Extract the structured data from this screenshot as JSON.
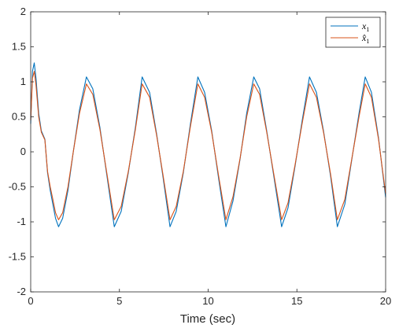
{
  "chart_data": {
    "type": "line",
    "title": "",
    "xlabel": "Time (sec)",
    "ylabel": "",
    "xlim": [
      0,
      20
    ],
    "ylim": [
      -2,
      2
    ],
    "xticks": [
      0,
      5,
      10,
      15,
      20
    ],
    "xtick_labels": [
      "0",
      "5",
      "10",
      "15",
      "20"
    ],
    "yticks": [
      -2,
      -1.5,
      -1,
      -0.5,
      0,
      0.5,
      1,
      1.5,
      2
    ],
    "ytick_labels": [
      "-2",
      "-1.5",
      "-1",
      "-0.5",
      "0",
      "0.5",
      "1",
      "1.5",
      "2"
    ],
    "grid": false,
    "legend_position": "top-right",
    "series": [
      {
        "name": "x1",
        "legend_main": "x",
        "legend_sub": "1",
        "color": "#0072BD",
        "x": [
          0,
          0.1,
          0.2,
          0.3,
          0.45,
          0.6,
          0.8,
          0.95,
          1.1,
          1.25,
          1.4,
          1.57,
          1.8,
          2.1,
          2.4,
          2.75,
          3.14,
          3.5,
          3.9,
          4.3,
          4.71,
          5.1,
          5.5,
          5.9,
          6.28,
          6.7,
          7.1,
          7.45,
          7.85,
          8.2,
          8.6,
          9.0,
          9.42,
          9.8,
          10.2,
          10.6,
          11.0,
          11.4,
          11.8,
          12.17,
          12.57,
          12.9,
          13.3,
          13.7,
          14.14,
          14.5,
          14.9,
          15.3,
          15.71,
          16.1,
          16.5,
          16.9,
          17.28,
          17.7,
          18.1,
          18.5,
          18.85,
          19.2,
          19.6,
          20.0
        ],
        "y": [
          0.4,
          1.15,
          1.27,
          1.05,
          0.55,
          0.3,
          0.18,
          -0.3,
          -0.55,
          -0.75,
          -0.95,
          -1.07,
          -0.95,
          -0.55,
          0.0,
          0.6,
          1.07,
          0.9,
          0.35,
          -0.35,
          -1.07,
          -0.85,
          -0.3,
          0.35,
          1.07,
          0.85,
          0.25,
          -0.35,
          -1.07,
          -0.85,
          -0.3,
          0.4,
          1.07,
          0.85,
          0.3,
          -0.4,
          -1.07,
          -0.7,
          -0.1,
          0.55,
          1.07,
          0.9,
          0.3,
          -0.35,
          -1.07,
          -0.8,
          -0.2,
          0.45,
          1.07,
          0.85,
          0.3,
          -0.35,
          -1.07,
          -0.75,
          -0.1,
          0.55,
          1.07,
          0.85,
          0.2,
          -0.65
        ]
      },
      {
        "name": "x̂1",
        "legend_main": "x̂",
        "legend_sub": "1",
        "color": "#D95319",
        "x": [
          0,
          0.1,
          0.2,
          0.3,
          0.45,
          0.6,
          0.8,
          0.95,
          1.1,
          1.25,
          1.4,
          1.57,
          1.8,
          2.1,
          2.4,
          2.75,
          3.14,
          3.5,
          3.9,
          4.3,
          4.71,
          5.1,
          5.5,
          5.9,
          6.28,
          6.7,
          7.1,
          7.45,
          7.85,
          8.2,
          8.6,
          9.0,
          9.42,
          9.8,
          10.2,
          10.6,
          11.0,
          11.4,
          11.8,
          12.17,
          12.57,
          12.9,
          13.3,
          13.7,
          14.14,
          14.5,
          14.9,
          15.3,
          15.71,
          16.1,
          16.5,
          16.9,
          17.28,
          17.7,
          18.1,
          18.5,
          18.85,
          19.2,
          19.6,
          20.0
        ],
        "y": [
          0.45,
          1.05,
          1.15,
          0.95,
          0.5,
          0.28,
          0.17,
          -0.28,
          -0.5,
          -0.68,
          -0.87,
          -0.97,
          -0.87,
          -0.5,
          0.0,
          0.55,
          0.97,
          0.82,
          0.32,
          -0.32,
          -0.97,
          -0.78,
          -0.28,
          0.32,
          0.97,
          0.78,
          0.23,
          -0.32,
          -0.97,
          -0.78,
          -0.28,
          0.36,
          0.97,
          0.78,
          0.28,
          -0.36,
          -0.97,
          -0.64,
          -0.09,
          0.5,
          0.97,
          0.82,
          0.28,
          -0.32,
          -0.97,
          -0.73,
          -0.18,
          0.41,
          0.97,
          0.78,
          0.28,
          -0.32,
          -0.97,
          -0.68,
          -0.09,
          0.5,
          0.97,
          0.78,
          0.18,
          -0.6
        ]
      }
    ]
  }
}
